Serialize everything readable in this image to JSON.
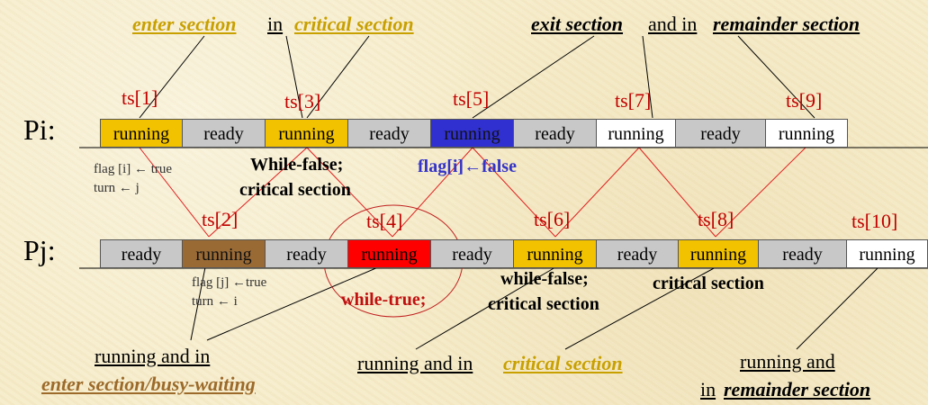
{
  "top_annotations": {
    "enter_section_1": "enter section",
    "in_word_1": "in",
    "critical_section_1": "critical section",
    "exit_section": "exit section",
    "and_in": "and in",
    "remainder_section_1": "remainder section"
  },
  "pi": {
    "label": "Pi:",
    "cells": [
      {
        "text": "running",
        "color": "#f2c200"
      },
      {
        "text": "ready",
        "color": "#c8c8c8"
      },
      {
        "text": "running",
        "color": "#f2c200"
      },
      {
        "text": "ready",
        "color": "#c8c8c8"
      },
      {
        "text": "running",
        "color": "#3030d0"
      },
      {
        "text": "ready",
        "color": "#c8c8c8"
      },
      {
        "text": "running",
        "color": "#ffffff"
      },
      {
        "text": "ready",
        "color": "#c8c8c8"
      },
      {
        "text": "running",
        "color": "#ffffff"
      }
    ],
    "timestamps": [
      "ts[1]",
      "ts[3]",
      "ts[5]",
      "ts[7]",
      "ts[9]"
    ]
  },
  "pj": {
    "label": "Pj:",
    "cells": [
      {
        "text": "ready",
        "color": "#c8c8c8"
      },
      {
        "text": "running",
        "color": "#9a6a35"
      },
      {
        "text": "ready",
        "color": "#c8c8c8"
      },
      {
        "text": "running",
        "color": "#ff0000"
      },
      {
        "text": "ready",
        "color": "#c8c8c8"
      },
      {
        "text": "running",
        "color": "#f2c200"
      },
      {
        "text": "ready",
        "color": "#c8c8c8"
      },
      {
        "text": "running",
        "color": "#f2c200"
      },
      {
        "text": "ready",
        "color": "#c8c8c8"
      },
      {
        "text": "running",
        "color": "#ffffff"
      }
    ],
    "timestamps": [
      "ts[2]",
      "ts[4]",
      "ts[6]",
      "ts[8]",
      "ts[10]"
    ]
  },
  "middle_notes": {
    "flag_i_true": "flag [i] ← true",
    "turn_j": "turn ← j",
    "while_false_1": "While-false;",
    "critical_section_2": "critical section",
    "flag_i_false": "flag[i]←false",
    "flag_j_true": "flag [j] ←true",
    "turn_i": "turn ← i",
    "while_true": "while-true;",
    "while_false_2": "while-false;",
    "critical_section_3": "critical section",
    "critical_section_4": "critical section"
  },
  "bottom_annotations": {
    "running_and_in_1": "running and in",
    "enter_section_busy": "enter section/busy-waiting",
    "running_and_in_2": "running and in",
    "critical_section_5": "critical section",
    "running_and": "running and",
    "in_word_2": "in",
    "remainder_section_2": "remainder section"
  }
}
